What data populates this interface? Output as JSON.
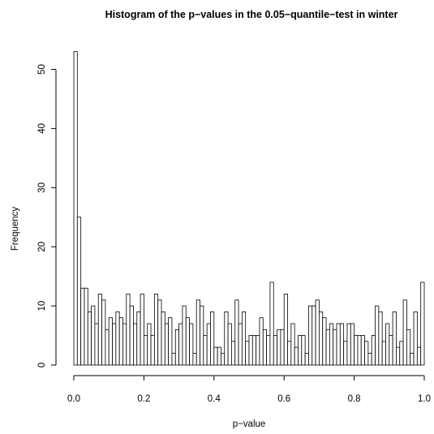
{
  "chart_data": {
    "type": "bar",
    "title": "Histogram of the p−values in the 0.05−quantile−test in winter",
    "xlabel": "p−value",
    "ylabel": "Frequency",
    "xlim": [
      0,
      1
    ],
    "ylim": [
      0,
      53
    ],
    "bin_width": 0.01,
    "grid": false,
    "x_ticks": [
      {
        "value": 0.0,
        "label": "0.0"
      },
      {
        "value": 0.2,
        "label": "0.2"
      },
      {
        "value": 0.4,
        "label": "0.4"
      },
      {
        "value": 0.6,
        "label": "0.6"
      },
      {
        "value": 0.8,
        "label": "0.8"
      },
      {
        "value": 1.0,
        "label": "1.0"
      }
    ],
    "y_ticks": [
      {
        "value": 0,
        "label": "0"
      },
      {
        "value": 10,
        "label": "10"
      },
      {
        "value": 20,
        "label": "20"
      },
      {
        "value": 30,
        "label": "30"
      },
      {
        "value": 40,
        "label": "40"
      },
      {
        "value": 50,
        "label": "50"
      }
    ],
    "values": [
      53,
      25,
      13,
      13,
      9,
      10,
      7,
      12,
      11,
      6,
      8,
      7,
      9,
      8,
      7,
      12,
      10,
      7,
      9,
      12,
      5,
      7,
      5,
      12,
      11,
      9,
      7,
      8,
      2,
      6,
      7,
      10,
      8,
      7,
      2,
      11,
      10,
      5,
      7,
      9,
      3,
      3,
      2,
      9,
      7,
      4,
      11,
      7,
      9,
      4,
      5,
      5,
      5,
      8,
      6,
      5,
      14,
      5,
      6,
      6,
      12,
      4,
      7,
      3,
      5,
      5,
      2,
      10,
      10,
      11,
      9,
      8,
      6,
      7,
      6,
      7,
      7,
      4,
      7,
      7,
      5,
      5,
      5,
      4,
      2,
      5,
      10,
      9,
      4,
      7,
      5,
      9,
      3,
      4,
      11,
      6,
      2,
      9,
      3,
      14
    ]
  }
}
